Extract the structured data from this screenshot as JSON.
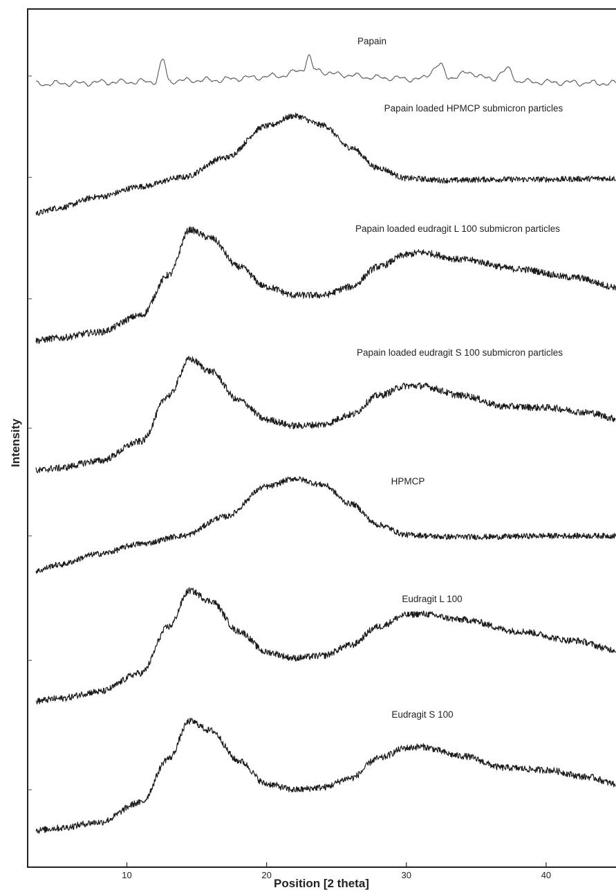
{
  "chart_data": {
    "type": "line",
    "title": "",
    "xlabel": "Position [2 theta]",
    "ylabel": "Intensity",
    "xlim": [
      3,
      45
    ],
    "x_ticks": [
      10,
      20,
      30,
      40
    ],
    "y_ticks_shown": false,
    "grid": false,
    "legend": "none (inline labels above each trace)",
    "series": [
      {
        "name": "Papain",
        "color": "#555555",
        "points": [
          [
            3.5,
            0.1
          ],
          [
            6,
            0.12
          ],
          [
            9,
            0.16
          ],
          [
            12,
            0.18
          ],
          [
            12.6,
            0.85
          ],
          [
            13,
            0.2
          ],
          [
            16,
            0.22
          ],
          [
            19,
            0.3
          ],
          [
            21,
            0.36
          ],
          [
            22.6,
            0.55
          ],
          [
            23,
            1.0
          ],
          [
            23.4,
            0.55
          ],
          [
            25,
            0.4
          ],
          [
            28,
            0.3
          ],
          [
            31,
            0.25
          ],
          [
            32.4,
            0.7
          ],
          [
            33,
            0.3
          ],
          [
            34.6,
            0.45
          ],
          [
            36,
            0.25
          ],
          [
            37.3,
            0.55
          ],
          [
            38,
            0.18
          ],
          [
            41,
            0.15
          ],
          [
            45,
            0.12
          ]
        ]
      },
      {
        "name": "Papain loaded HPMCP submicron particles",
        "color": "#1a1a1a",
        "points": [
          [
            3.5,
            0.0
          ],
          [
            5,
            0.05
          ],
          [
            8,
            0.16
          ],
          [
            11,
            0.26
          ],
          [
            14,
            0.35
          ],
          [
            17,
            0.54
          ],
          [
            20,
            0.85
          ],
          [
            22,
            0.95
          ],
          [
            24,
            0.86
          ],
          [
            26,
            0.64
          ],
          [
            28,
            0.44
          ],
          [
            30,
            0.34
          ],
          [
            33,
            0.32
          ],
          [
            36,
            0.33
          ],
          [
            40,
            0.33
          ],
          [
            45,
            0.34
          ]
        ]
      },
      {
        "name": "Papain loaded eudragit L 100 submicron particles",
        "color": "#1a1a1a",
        "points": [
          [
            3.5,
            0.0
          ],
          [
            5,
            0.02
          ],
          [
            8,
            0.07
          ],
          [
            11,
            0.21
          ],
          [
            13,
            0.55
          ],
          [
            14.5,
            0.93
          ],
          [
            16,
            0.86
          ],
          [
            18,
            0.62
          ],
          [
            20,
            0.45
          ],
          [
            22,
            0.38
          ],
          [
            24,
            0.38
          ],
          [
            26,
            0.45
          ],
          [
            28,
            0.62
          ],
          [
            30,
            0.72
          ],
          [
            31,
            0.74
          ],
          [
            34,
            0.68
          ],
          [
            38,
            0.6
          ],
          [
            42,
            0.53
          ],
          [
            45,
            0.45
          ]
        ]
      },
      {
        "name": "Papain loaded eudragit S 100 submicron particles",
        "color": "#1a1a1a",
        "points": [
          [
            3.5,
            0.0
          ],
          [
            5,
            0.02
          ],
          [
            8,
            0.08
          ],
          [
            11,
            0.24
          ],
          [
            13,
            0.62
          ],
          [
            14.5,
            0.92
          ],
          [
            16,
            0.82
          ],
          [
            18,
            0.58
          ],
          [
            20,
            0.42
          ],
          [
            22,
            0.37
          ],
          [
            24,
            0.38
          ],
          [
            26,
            0.46
          ],
          [
            28,
            0.62
          ],
          [
            30,
            0.7
          ],
          [
            31,
            0.7
          ],
          [
            34,
            0.62
          ],
          [
            37,
            0.53
          ],
          [
            40,
            0.52
          ],
          [
            43,
            0.48
          ],
          [
            45,
            0.43
          ]
        ]
      },
      {
        "name": "HPMCP",
        "color": "#1a1a1a",
        "points": [
          [
            3.5,
            0.0
          ],
          [
            5,
            0.06
          ],
          [
            8,
            0.17
          ],
          [
            11,
            0.27
          ],
          [
            14,
            0.35
          ],
          [
            17,
            0.54
          ],
          [
            20,
            0.84
          ],
          [
            22,
            0.92
          ],
          [
            24,
            0.86
          ],
          [
            26,
            0.67
          ],
          [
            28,
            0.46
          ],
          [
            30,
            0.36
          ],
          [
            33,
            0.34
          ],
          [
            36,
            0.34
          ],
          [
            40,
            0.35
          ],
          [
            45,
            0.35
          ]
        ]
      },
      {
        "name": "Eudragit L 100",
        "color": "#1a1a1a",
        "points": [
          [
            3.5,
            0.0
          ],
          [
            5,
            0.02
          ],
          [
            8,
            0.08
          ],
          [
            11,
            0.24
          ],
          [
            13,
            0.64
          ],
          [
            14.5,
            0.95
          ],
          [
            16,
            0.86
          ],
          [
            18,
            0.6
          ],
          [
            20,
            0.42
          ],
          [
            22,
            0.37
          ],
          [
            24,
            0.39
          ],
          [
            26,
            0.48
          ],
          [
            28,
            0.64
          ],
          [
            30,
            0.74
          ],
          [
            31,
            0.75
          ],
          [
            34,
            0.7
          ],
          [
            38,
            0.6
          ],
          [
            42,
            0.52
          ],
          [
            45,
            0.44
          ]
        ]
      },
      {
        "name": "Eudragit S 100",
        "color": "#1a1a1a",
        "points": [
          [
            3.5,
            0.0
          ],
          [
            5,
            0.02
          ],
          [
            8,
            0.07
          ],
          [
            11,
            0.24
          ],
          [
            13,
            0.62
          ],
          [
            14.5,
            0.94
          ],
          [
            16,
            0.86
          ],
          [
            18,
            0.6
          ],
          [
            20,
            0.4
          ],
          [
            22,
            0.35
          ],
          [
            24,
            0.37
          ],
          [
            26,
            0.45
          ],
          [
            28,
            0.62
          ],
          [
            30,
            0.71
          ],
          [
            31,
            0.72
          ],
          [
            34,
            0.64
          ],
          [
            37,
            0.54
          ],
          [
            40,
            0.52
          ],
          [
            43,
            0.46
          ],
          [
            45,
            0.4
          ]
        ]
      }
    ]
  }
}
